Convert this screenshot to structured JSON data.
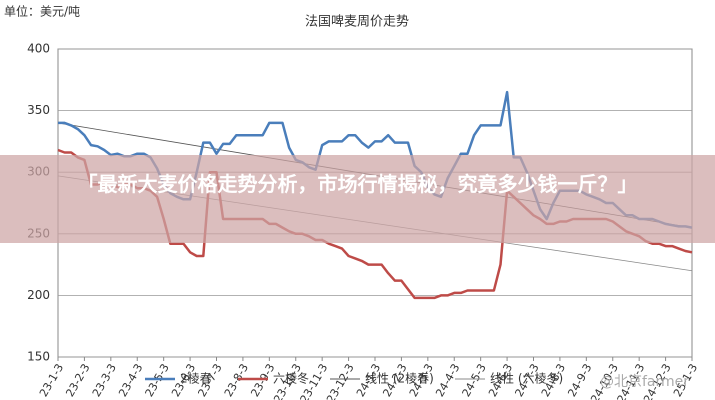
{
  "chart_data": {
    "type": "line",
    "title": "法国啤麦周价走势",
    "unit_label": "单位：美元/吨",
    "overlay_text": "「最新大麦价格走势分析，市场行情揭秘，究竟多少钱一斤？」",
    "watermark": "@北京farmer",
    "categories": [
      "23-1-3",
      null,
      null,
      null,
      "23-2-3",
      null,
      null,
      null,
      "23-3-3",
      null,
      null,
      null,
      "23-4-3",
      null,
      null,
      null,
      "23-5-3",
      null,
      null,
      null,
      "23-6-3",
      null,
      null,
      null,
      "23-7-3",
      null,
      null,
      null,
      "23-8-3",
      null,
      null,
      null,
      "23-9-3",
      null,
      null,
      null,
      "23-10-3",
      null,
      null,
      null,
      "23-11-3",
      null,
      null,
      null,
      "23-12-3",
      null,
      null,
      null,
      "24-1-3",
      null,
      null,
      null,
      "24-2-3",
      null,
      null,
      null,
      "24-3-3",
      null,
      null,
      null,
      "24-4-3",
      null,
      null,
      null,
      "24-5-3",
      null,
      null,
      null,
      "24-6-3",
      null,
      null,
      null,
      "24-7-3",
      null,
      null,
      null,
      "24-8-3",
      null,
      null,
      null,
      "24-9-3",
      null,
      null,
      null,
      "24-10-3",
      null,
      null,
      null,
      "24-11-3",
      null,
      null,
      null,
      "24-12-3",
      null,
      null,
      null,
      "25-1-3"
    ],
    "series": [
      {
        "name": "2棱春",
        "color": "#4a7ebb",
        "values": [
          340,
          340,
          338,
          335,
          330,
          322,
          321,
          318,
          314,
          315,
          313,
          313,
          315,
          315,
          312,
          303,
          290,
          283,
          280,
          278,
          278,
          300,
          324,
          324,
          315,
          323,
          323,
          330,
          330,
          330,
          330,
          330,
          340,
          340,
          340,
          320,
          310,
          308,
          304,
          302,
          322,
          325,
          325,
          325,
          330,
          330,
          324,
          320,
          325,
          325,
          330,
          324,
          324,
          324,
          305,
          300,
          288,
          282,
          280,
          295,
          305,
          315,
          315,
          330,
          338,
          338,
          338,
          338,
          365,
          312,
          312,
          300,
          285,
          270,
          262,
          275,
          285,
          285,
          285,
          285,
          282,
          280,
          278,
          275,
          275,
          270,
          265,
          265,
          262,
          262,
          262,
          260,
          258,
          257,
          256,
          256,
          255
        ]
      },
      {
        "name": "六棱冬",
        "color": "#be4b48",
        "values": [
          318,
          316,
          316,
          312,
          310,
          290,
          290,
          292,
          290,
          288,
          290,
          290,
          287,
          287,
          285,
          280,
          262,
          242,
          242,
          242,
          235,
          232,
          232,
          300,
          300,
          262,
          262,
          262,
          262,
          262,
          262,
          262,
          258,
          258,
          255,
          252,
          250,
          250,
          248,
          245,
          245,
          242,
          240,
          238,
          232,
          230,
          228,
          225,
          225,
          225,
          218,
          212,
          212,
          205,
          198,
          198,
          198,
          198,
          200,
          200,
          202,
          202,
          204,
          204,
          204,
          204,
          204,
          225,
          285,
          280,
          275,
          270,
          265,
          262,
          258,
          258,
          260,
          260,
          262,
          262,
          262,
          262,
          262,
          262,
          260,
          256,
          252,
          250,
          248,
          244,
          242,
          242,
          240,
          240,
          238,
          236,
          235
        ]
      }
    ],
    "trendlines": [
      {
        "name": "线性 (2棱春)",
        "color": "#555555",
        "values": [
          340,
          255
        ]
      },
      {
        "name": "线性 (六棱冬)",
        "color": "#888888",
        "values": [
          297,
          220
        ]
      }
    ],
    "ylim": [
      150,
      400
    ],
    "yticks": [
      150,
      200,
      250,
      300,
      350,
      400
    ],
    "grid": true
  }
}
